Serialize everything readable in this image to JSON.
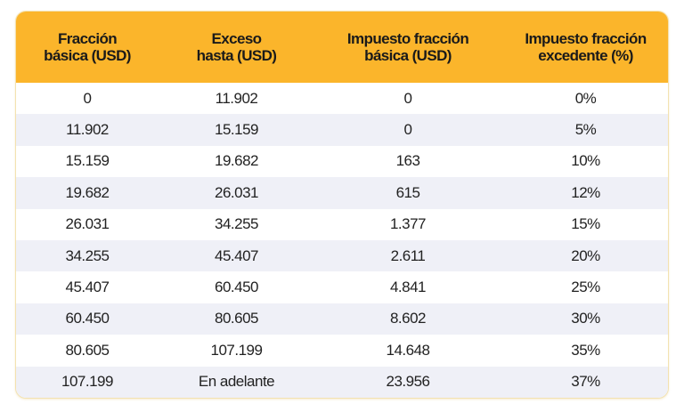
{
  "table": {
    "headers": [
      [
        "Fracción",
        "básica (USD)"
      ],
      [
        "Exceso",
        "hasta (USD)"
      ],
      [
        "Impuesto fracción",
        "básica (USD)"
      ],
      [
        "Impuesto fracción",
        "excedente (%)"
      ]
    ],
    "rows": [
      [
        "0",
        "11.902",
        "0",
        "0%"
      ],
      [
        "11.902",
        "15.159",
        "0",
        "5%"
      ],
      [
        "15.159",
        "19.682",
        "163",
        "10%"
      ],
      [
        "19.682",
        "26.031",
        "615",
        "12%"
      ],
      [
        "26.031",
        "34.255",
        "1.377",
        "15%"
      ],
      [
        "34.255",
        "45.407",
        "2.611",
        "20%"
      ],
      [
        "45.407",
        "60.450",
        "4.841",
        "25%"
      ],
      [
        "60.450",
        "80.605",
        "8.602",
        "30%"
      ],
      [
        "80.605",
        "107.199",
        "14.648",
        "35%"
      ],
      [
        "107.199",
        "En adelante",
        "23.956",
        "37%"
      ]
    ]
  },
  "colors": {
    "header": "#fbb52b",
    "stripe": "#eff0f7"
  }
}
